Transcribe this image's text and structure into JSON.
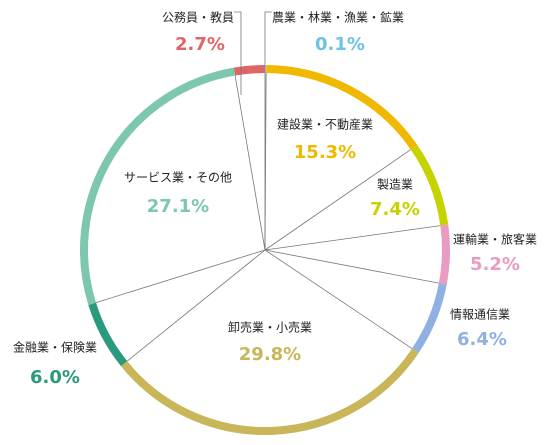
{
  "chart_data": {
    "type": "pie",
    "categories": [
      "農業・林業・漁業・鉱業",
      "建設業・不動産業",
      "製造業",
      "運輸業・旅客業",
      "情報通信業",
      "卸売業・小売業",
      "金融業・保険業",
      "サービス業・その他",
      "公務員・教員"
    ],
    "values": [
      0.1,
      15.3,
      7.4,
      5.2,
      6.4,
      29.8,
      6.0,
      27.1,
      2.7
    ],
    "value_labels": [
      "0.1%",
      "15.3%",
      "7.4%",
      "5.2%",
      "6.4%",
      "29.8%",
      "6.0%",
      "27.1%",
      "2.7%"
    ],
    "colors": [
      "#6cc3e6",
      "#f0b800",
      "#c5d400",
      "#e99bc2",
      "#8fb1e2",
      "#c9b55a",
      "#2a9a7e",
      "#7dc7ac",
      "#e06565"
    ]
  }
}
